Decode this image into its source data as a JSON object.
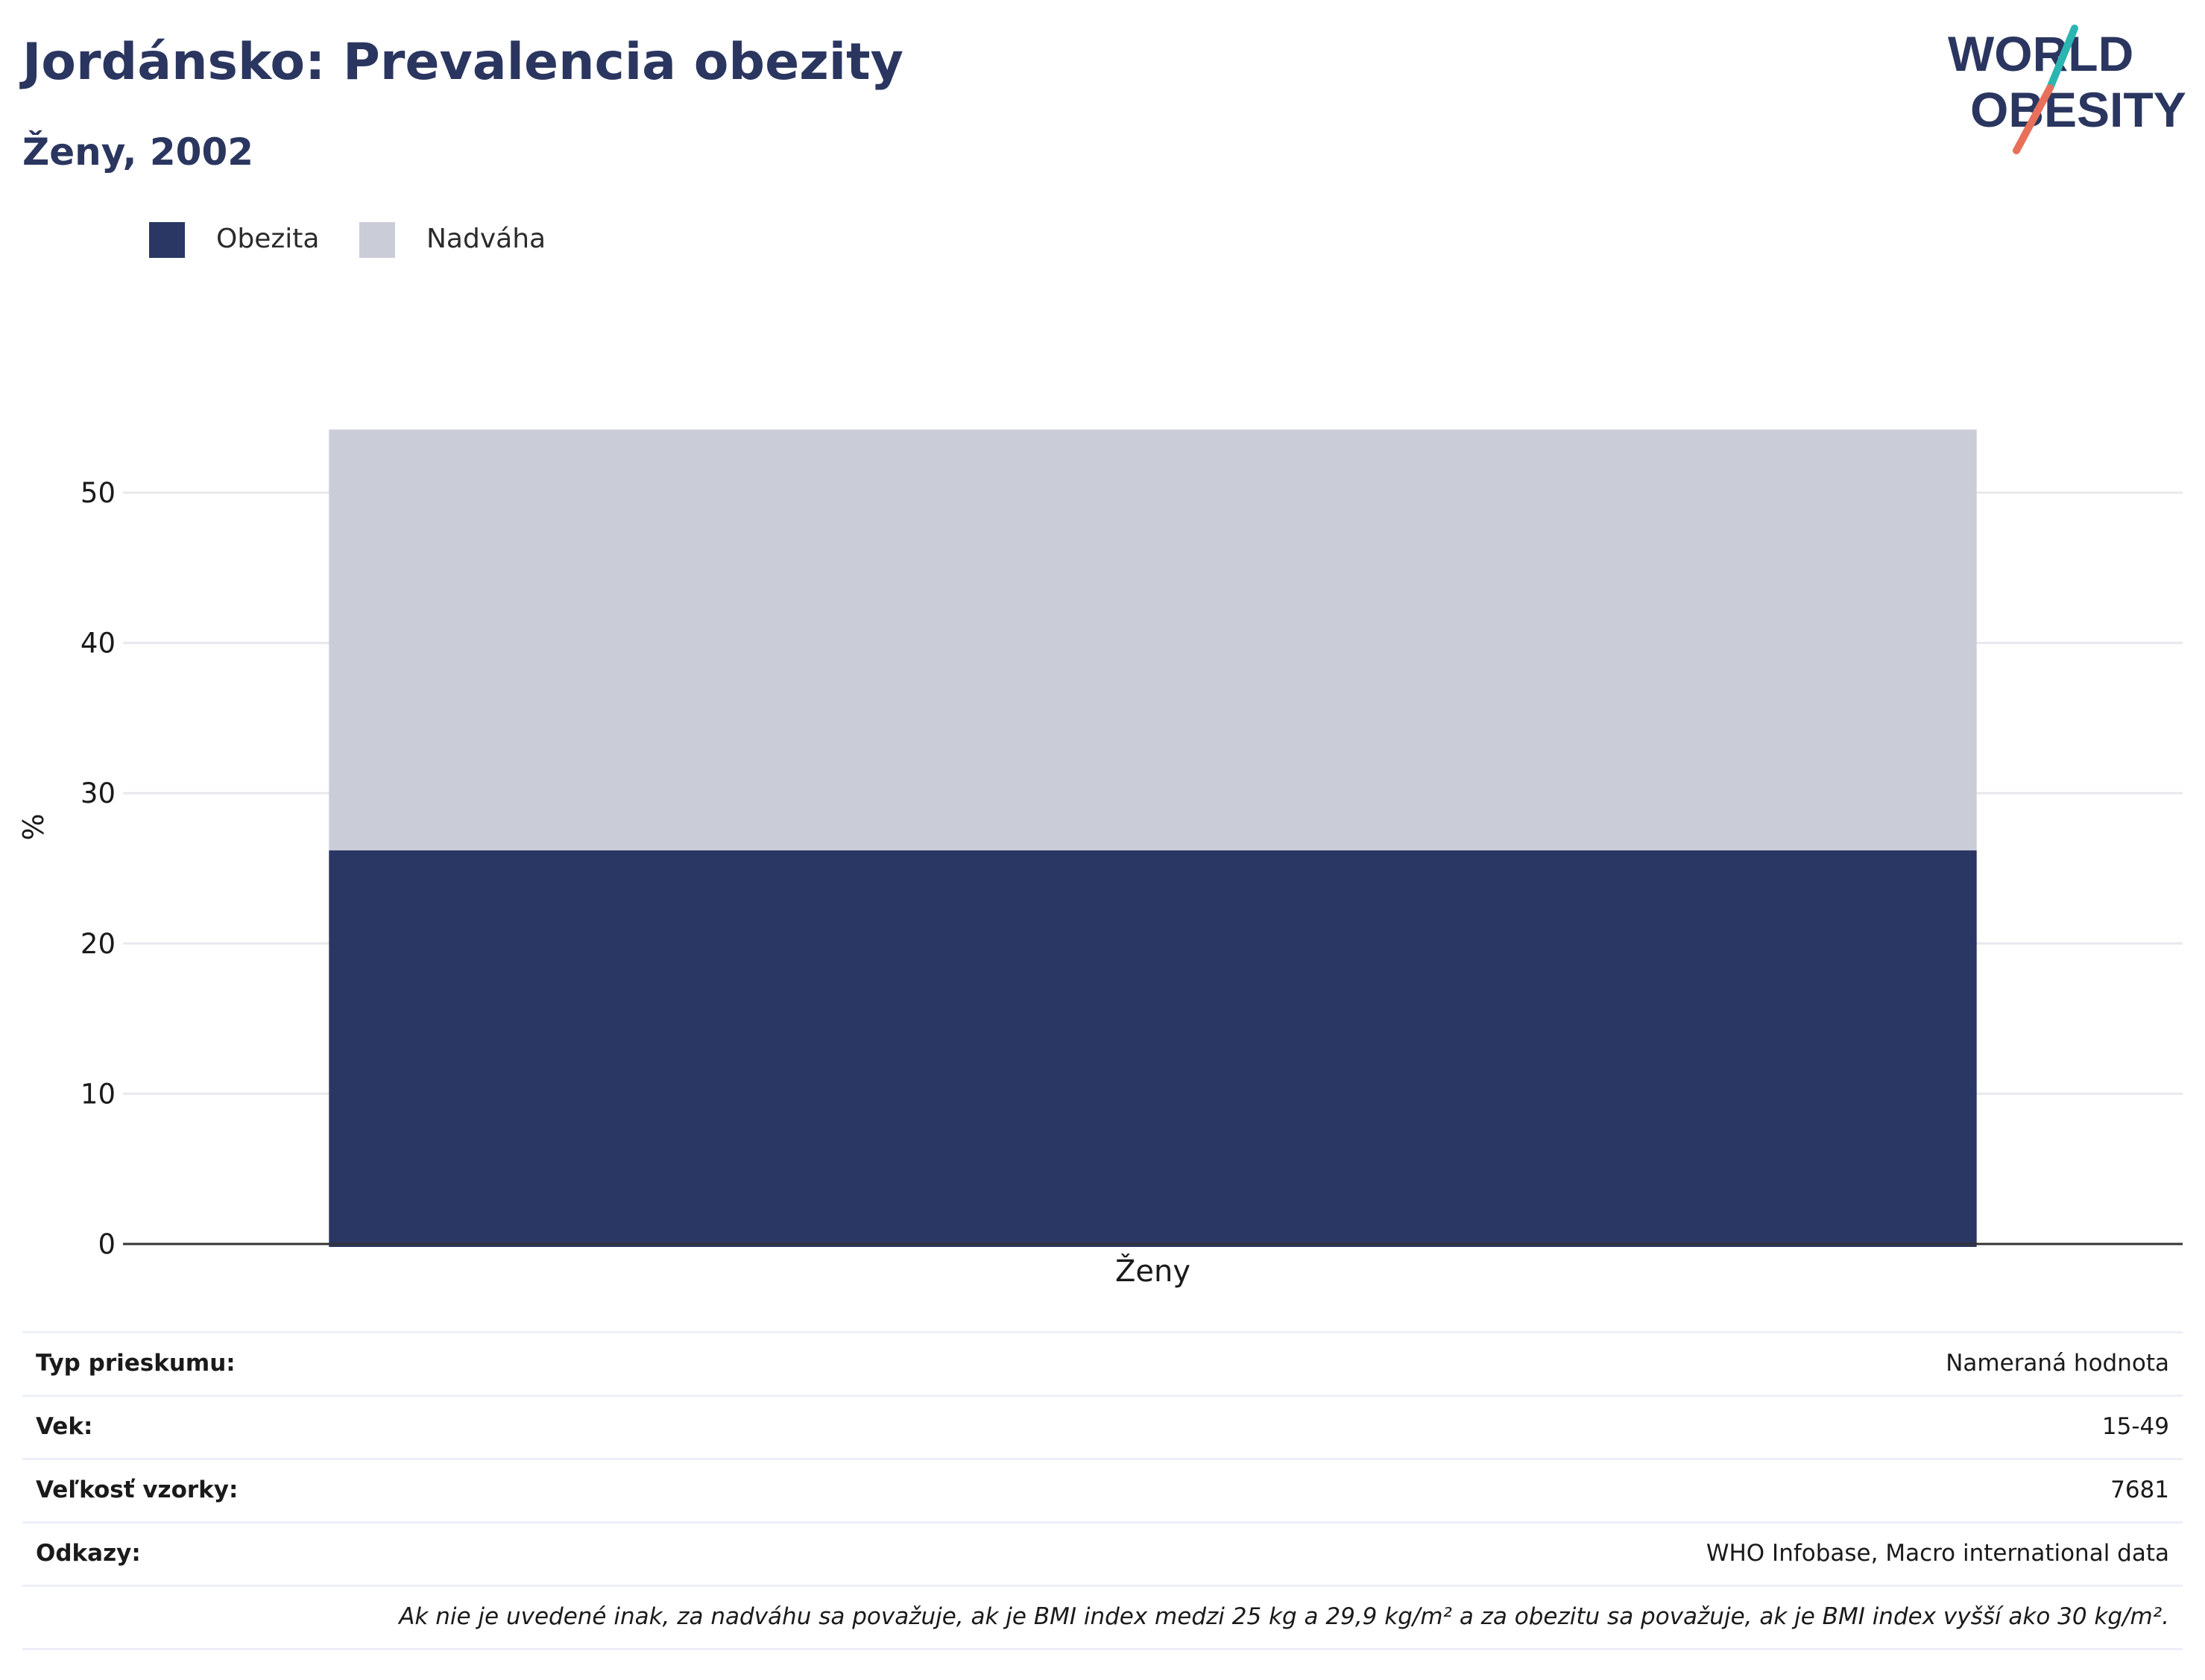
{
  "header": {
    "title": "Jordánsko: Prevalencia obezity",
    "subtitle": "Ženy, 2002"
  },
  "logo": {
    "line1": "WORLD",
    "line2": "OBESITY",
    "colors": {
      "text": "#2a365f",
      "accent_teal": "#2bb5b0",
      "accent_red": "#e8705a"
    }
  },
  "colors": {
    "obesity": "#2a3764",
    "overweight": "#cacdd8",
    "grid": "#e8e8ee",
    "axis": "#333333"
  },
  "chart_data": {
    "type": "bar",
    "stacked": true,
    "categories": [
      "Ženy"
    ],
    "series": [
      {
        "name": "Obezita",
        "values": [
          26.2
        ],
        "color": "#2a3764"
      },
      {
        "name": "Nadváha",
        "values": [
          28.0
        ],
        "color": "#cacdd8"
      }
    ],
    "xlabel": "",
    "ylabel": "%",
    "ylim": [
      0,
      56
    ],
    "yticks": [
      0,
      10,
      20,
      30,
      40,
      50
    ],
    "grid": true,
    "legend": "top-left"
  },
  "info": {
    "rows": [
      {
        "label": "Typ prieskumu:",
        "value": "Nameraná hodnota"
      },
      {
        "label": "Vek:",
        "value": "15-49"
      },
      {
        "label": "Veľkosť vzorky:",
        "value": "7681"
      },
      {
        "label": "Odkazy:",
        "value": "WHO Infobase, Macro international data"
      }
    ],
    "note": "Ak nie je uvedené inak, za nadváhu sa považuje, ak je BMI index medzi 25 kg a 29,9 kg/m² a za obezitu sa považuje, ak je BMI index vyšší ako 30 kg/m²."
  }
}
